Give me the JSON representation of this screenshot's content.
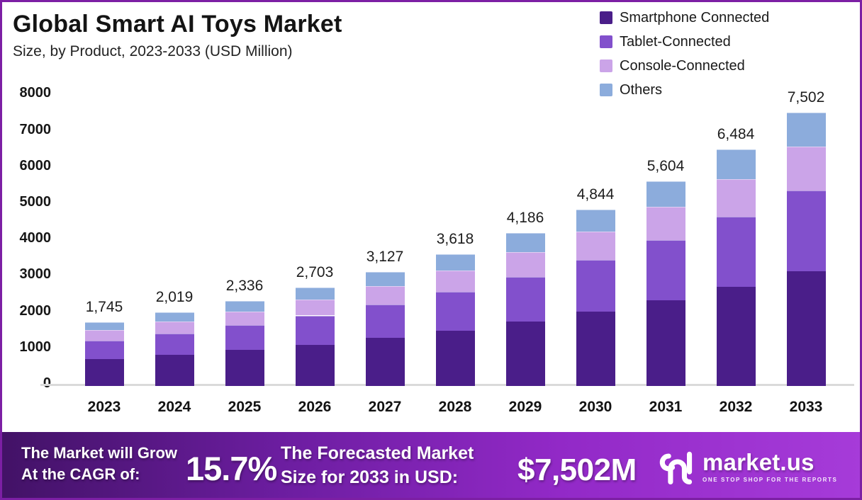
{
  "header": {
    "title": "Global Smart AI Toys Market",
    "subtitle": "Size, by Product, 2023-2033 (USD Million)"
  },
  "chart_data": {
    "type": "bar",
    "stacked": true,
    "title": "Global Smart AI Toys Market",
    "subtitle": "Size, by Product, 2023-2033 (USD Million)",
    "xlabel": "",
    "ylabel": "",
    "ylim": [
      0,
      8000
    ],
    "yticks": [
      0,
      1000,
      2000,
      3000,
      4000,
      5000,
      6000,
      7000,
      8000
    ],
    "grid": false,
    "legend_position": "top-right",
    "categories": [
      "2023",
      "2024",
      "2025",
      "2026",
      "2027",
      "2028",
      "2029",
      "2030",
      "2031",
      "2032",
      "2033"
    ],
    "series": [
      {
        "name": "Smartphone Connected",
        "color": "#4A1E89",
        "values": [
          733,
          848,
          981,
          1135,
          1313,
          1520,
          1758,
          2034,
          2354,
          2723,
          3151
        ]
      },
      {
        "name": "Tablet-Connected",
        "color": "#8250CC",
        "values": [
          515,
          596,
          689,
          797,
          922,
          1067,
          1235,
          1429,
          1653,
          1913,
          2213
        ]
      },
      {
        "name": "Console-Connected",
        "color": "#CBA4E8",
        "values": [
          279,
          323,
          374,
          433,
          501,
          579,
          670,
          775,
          897,
          1037,
          1200
        ]
      },
      {
        "name": "Others",
        "color": "#8CACDC",
        "values": [
          218,
          252,
          292,
          338,
          391,
          452,
          523,
          606,
          700,
          811,
          938
        ]
      }
    ],
    "totals": [
      1745,
      2019,
      2336,
      2703,
      3127,
      3618,
      4186,
      4844,
      5604,
      6484,
      7502
    ],
    "total_labels": [
      "1,745",
      "2,019",
      "2,336",
      "2,703",
      "3,127",
      "3,618",
      "4,186",
      "4,844",
      "5,604",
      "6,484",
      "7,502"
    ]
  },
  "footer": {
    "cagr_label_line1": "The Market will Grow",
    "cagr_label_line2": "At the CAGR of:",
    "cagr_value": "15.7%",
    "forecast_label_line1": "The Forecasted Market",
    "forecast_label_line2": "Size for 2033 in USD:",
    "forecast_value": "$7,502M",
    "brand": {
      "name": "market.us",
      "tagline": "ONE STOP SHOP FOR THE REPORTS"
    }
  },
  "colors": {
    "frame_border": "#7C1FA4",
    "banner_gradient_left": "#421266",
    "banner_gradient_right": "#A63BD9",
    "axis_line": "#DADADA"
  }
}
